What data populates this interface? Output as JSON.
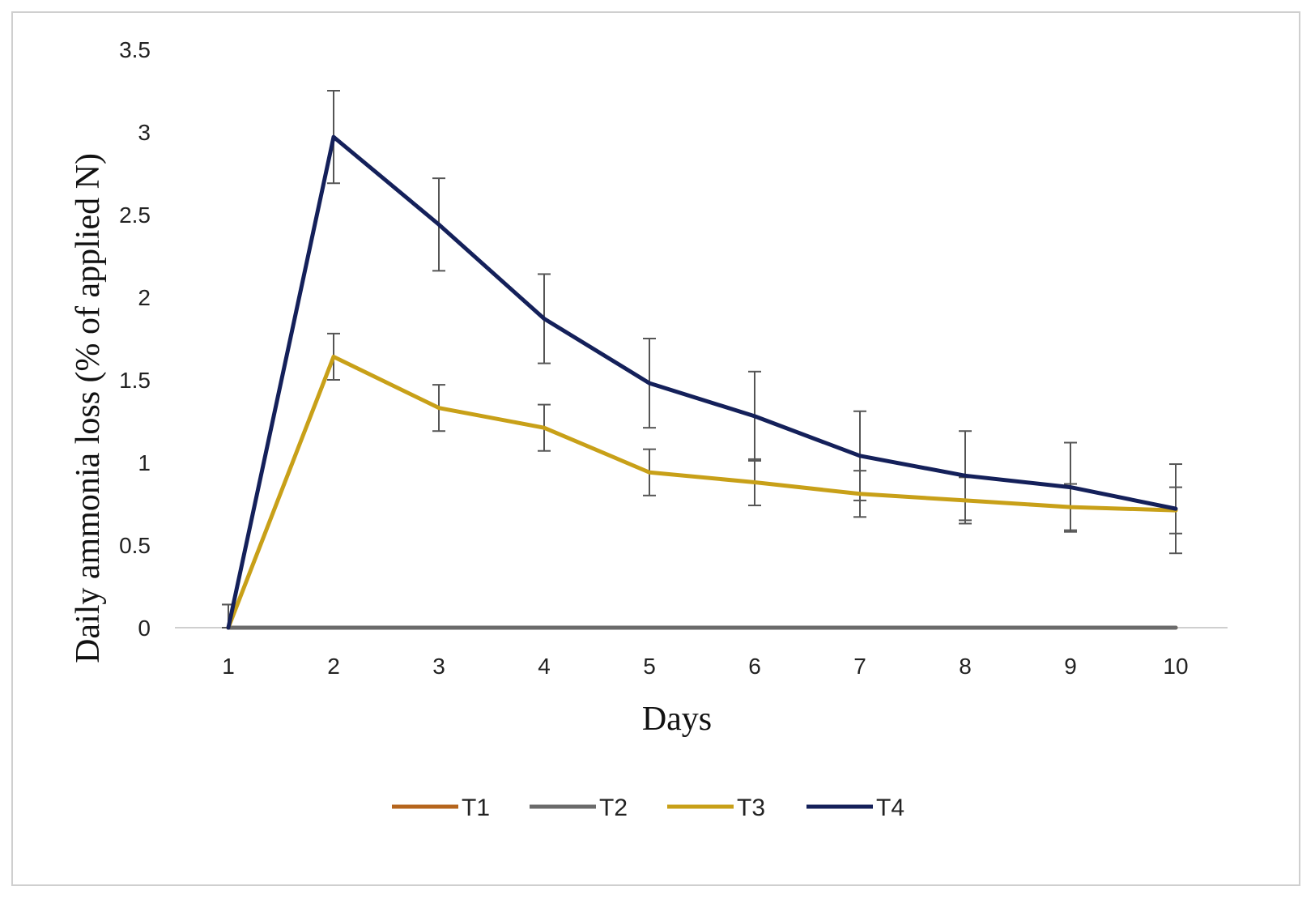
{
  "chart_data": {
    "type": "line",
    "title": "",
    "xlabel": "Days",
    "ylabel": "Daily ammonia loss (% of applied N)",
    "x": [
      1,
      2,
      3,
      4,
      5,
      6,
      7,
      8,
      9,
      10
    ],
    "x_tick_labels": [
      "1",
      "2",
      "3",
      "4",
      "5",
      "6",
      "7",
      "8",
      "9",
      "10"
    ],
    "ylim": [
      0,
      3.5
    ],
    "y_ticks": [
      0,
      0.5,
      1,
      1.5,
      2,
      2.5,
      3,
      3.5
    ],
    "y_tick_labels": [
      "0",
      "0.5",
      "1",
      "1.5",
      "2",
      "2.5",
      "3",
      "3.5"
    ],
    "grid": false,
    "legend_position": "bottom",
    "series": [
      {
        "name": "T1",
        "color": "#b5651d",
        "values": [
          0,
          0,
          0,
          0,
          0,
          0,
          0,
          0,
          0,
          0
        ],
        "errors": [
          0,
          0,
          0,
          0,
          0,
          0,
          0,
          0,
          0,
          0
        ]
      },
      {
        "name": "T2",
        "color": "#6b6b6b",
        "values": [
          0,
          0,
          0,
          0,
          0,
          0,
          0,
          0,
          0,
          0
        ],
        "errors": [
          0,
          0,
          0,
          0,
          0,
          0,
          0,
          0,
          0,
          0
        ]
      },
      {
        "name": "T3",
        "color": "#c8a018",
        "values": [
          0,
          1.64,
          1.33,
          1.21,
          0.94,
          0.88,
          0.81,
          0.77,
          0.73,
          0.71
        ],
        "errors": [
          0.14,
          0.14,
          0.14,
          0.14,
          0.14,
          0.14,
          0.14,
          0.14,
          0.14,
          0.14
        ]
      },
      {
        "name": "T4",
        "color": "#14205a",
        "values": [
          0,
          2.97,
          2.44,
          1.87,
          1.48,
          1.28,
          1.04,
          0.92,
          0.85,
          0.72
        ],
        "errors": [
          0.14,
          0.28,
          0.28,
          0.27,
          0.27,
          0.27,
          0.27,
          0.27,
          0.27,
          0.27
        ]
      }
    ]
  }
}
